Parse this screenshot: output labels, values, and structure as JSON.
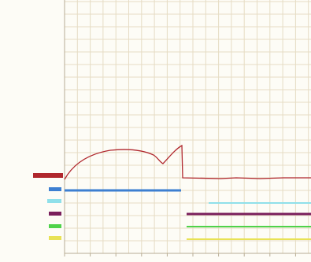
{
  "channels": [
    {
      "color": "#b0272d"
    },
    {
      "color": "#3d7fd1"
    },
    {
      "color": "#8fe0ea"
    },
    {
      "color": "#7a1f5c"
    },
    {
      "color": "#4fd34a"
    },
    {
      "color": "#e8e255"
    }
  ]
}
